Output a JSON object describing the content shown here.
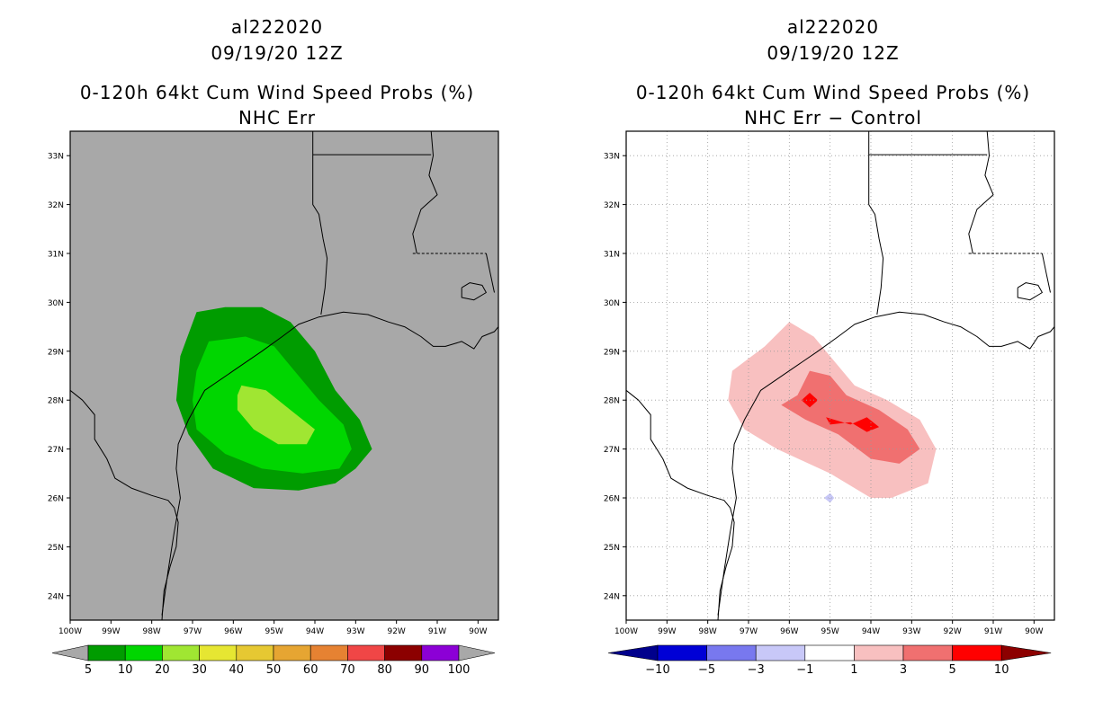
{
  "panels": [
    {
      "id": "left",
      "storm_id": "al222020",
      "datetime": "09/19/20 12Z",
      "title": "0-120h 64kt Cum Wind Speed Probs (%)",
      "subtitle": "NHC Err",
      "background": "#a8a8a8",
      "grid": false
    },
    {
      "id": "right",
      "storm_id": "al222020",
      "datetime": "09/19/20 12Z",
      "title": "0-120h 64kt Cum Wind Speed Probs (%)",
      "subtitle": "NHC Err − Control",
      "background": "#ffffff",
      "grid": true
    }
  ],
  "chart_data": [
    {
      "type": "heatmap",
      "title": "0-120h 64kt Cum Wind Speed Probs (%)",
      "subtitle": "NHC Err",
      "x_ticks": [
        "100W",
        "99W",
        "98W",
        "97W",
        "96W",
        "95W",
        "94W",
        "93W",
        "92W",
        "91W",
        "90W"
      ],
      "y_ticks": [
        "24N",
        "25N",
        "26N",
        "27N",
        "28N",
        "29N",
        "30N",
        "31N",
        "32N",
        "33N"
      ],
      "lon_range": [
        -100,
        -89.5
      ],
      "lat_range": [
        23.5,
        33.5
      ],
      "colorbar": {
        "labels": [
          "5",
          "10",
          "20",
          "30",
          "40",
          "50",
          "60",
          "70",
          "80",
          "90",
          "100"
        ],
        "colors": [
          "#009c00",
          "#00d600",
          "#a0e632",
          "#e6e632",
          "#e6c832",
          "#e6a532",
          "#e68232",
          "#f04646",
          "#8c0000",
          "#8c00d6"
        ],
        "low_end_color": "#a8a8a8",
        "high_end_color": "#a8a8a8"
      },
      "contours": [
        {
          "level": "5-10%",
          "color": "#009c00",
          "polygon": [
            [
              -96.9,
              29.8
            ],
            [
              -96.2,
              29.9
            ],
            [
              -95.3,
              29.9
            ],
            [
              -94.6,
              29.6
            ],
            [
              -94.0,
              29.0
            ],
            [
              -93.5,
              28.2
            ],
            [
              -92.9,
              27.6
            ],
            [
              -92.6,
              27.0
            ],
            [
              -93.0,
              26.6
            ],
            [
              -93.5,
              26.3
            ],
            [
              -94.4,
              26.15
            ],
            [
              -95.5,
              26.2
            ],
            [
              -96.5,
              26.6
            ],
            [
              -97.1,
              27.3
            ],
            [
              -97.4,
              28.0
            ],
            [
              -97.3,
              28.9
            ]
          ]
        },
        {
          "level": "10-20%",
          "color": "#00d600",
          "polygon": [
            [
              -96.6,
              29.2
            ],
            [
              -95.7,
              29.3
            ],
            [
              -95.0,
              29.1
            ],
            [
              -94.5,
              28.6
            ],
            [
              -93.9,
              28.0
            ],
            [
              -93.3,
              27.5
            ],
            [
              -93.1,
              27.0
            ],
            [
              -93.4,
              26.6
            ],
            [
              -94.3,
              26.5
            ],
            [
              -95.3,
              26.6
            ],
            [
              -96.2,
              26.9
            ],
            [
              -96.9,
              27.4
            ],
            [
              -97.0,
              28.0
            ],
            [
              -96.9,
              28.6
            ]
          ]
        },
        {
          "level": "20-30%",
          "color": "#a0e632",
          "polygon": [
            [
              -95.8,
              28.3
            ],
            [
              -95.2,
              28.2
            ],
            [
              -94.6,
              27.8
            ],
            [
              -94.0,
              27.4
            ],
            [
              -94.2,
              27.1
            ],
            [
              -94.9,
              27.1
            ],
            [
              -95.5,
              27.4
            ],
            [
              -95.9,
              27.8
            ],
            [
              -95.9,
              28.1
            ]
          ]
        }
      ]
    },
    {
      "type": "heatmap",
      "title": "0-120h 64kt Cum Wind Speed Probs (%)",
      "subtitle": "NHC Err − Control",
      "x_ticks": [
        "100W",
        "99W",
        "98W",
        "97W",
        "96W",
        "95W",
        "94W",
        "93W",
        "92W",
        "91W",
        "90W"
      ],
      "y_ticks": [
        "24N",
        "25N",
        "26N",
        "27N",
        "28N",
        "29N",
        "30N",
        "31N",
        "32N",
        "33N"
      ],
      "lon_range": [
        -100,
        -89.5
      ],
      "lat_range": [
        23.5,
        33.5
      ],
      "colorbar": {
        "labels": [
          "−10",
          "−5",
          "−3",
          "−1",
          "1",
          "3",
          "5",
          "10"
        ],
        "colors": [
          "#0000d6",
          "#7878ef",
          "#c8c8f8",
          "#ffffff",
          "#f8c0c0",
          "#f07070",
          "#ff0000"
        ],
        "low_end_color": "#00008c",
        "high_end_color": "#8c0000"
      },
      "contours": [
        {
          "level": "1-3",
          "color": "#f8c0c0",
          "polygon": [
            [
              -96.0,
              29.6
            ],
            [
              -95.4,
              29.3
            ],
            [
              -94.9,
              28.8
            ],
            [
              -94.4,
              28.3
            ],
            [
              -93.6,
              28.0
            ],
            [
              -92.8,
              27.6
            ],
            [
              -92.4,
              27.0
            ],
            [
              -92.6,
              26.3
            ],
            [
              -93.5,
              26.0
            ],
            [
              -94.0,
              26.0
            ],
            [
              -95.0,
              26.5
            ],
            [
              -96.3,
              27.0
            ],
            [
              -97.1,
              27.4
            ],
            [
              -97.5,
              28.0
            ],
            [
              -97.4,
              28.6
            ],
            [
              -96.6,
              29.1
            ]
          ]
        },
        {
          "level": "3-5",
          "color": "#f07070",
          "polygon": [
            [
              -95.8,
              28.1
            ],
            [
              -95.5,
              28.6
            ],
            [
              -95.0,
              28.5
            ],
            [
              -94.6,
              28.1
            ],
            [
              -93.8,
              27.8
            ],
            [
              -93.1,
              27.4
            ],
            [
              -92.8,
              27.0
            ],
            [
              -93.3,
              26.7
            ],
            [
              -94.0,
              26.8
            ],
            [
              -94.8,
              27.3
            ],
            [
              -95.6,
              27.6
            ],
            [
              -96.2,
              27.9
            ]
          ]
        },
        {
          "level": "5-10",
          "color": "#ff0000",
          "polygon": [
            [
              -95.7,
              28.0
            ],
            [
              -95.5,
              28.15
            ],
            [
              -95.3,
              28.0
            ],
            [
              -95.5,
              27.85
            ]
          ]
        },
        {
          "level": "5-10",
          "color": "#ff0000",
          "polygon": [
            [
              -95.1,
              27.65
            ],
            [
              -94.5,
              27.5
            ],
            [
              -94.1,
              27.65
            ],
            [
              -93.8,
              27.45
            ],
            [
              -94.1,
              27.35
            ],
            [
              -94.5,
              27.55
            ],
            [
              -95.0,
              27.5
            ]
          ]
        },
        {
          "level": "-3 to -1",
          "color": "#c8c8f8",
          "polygon": [
            [
              -95.0,
              26.1
            ],
            [
              -94.9,
              26.0
            ],
            [
              -95.0,
              25.9
            ],
            [
              -95.15,
              26.0
            ]
          ]
        }
      ]
    }
  ]
}
